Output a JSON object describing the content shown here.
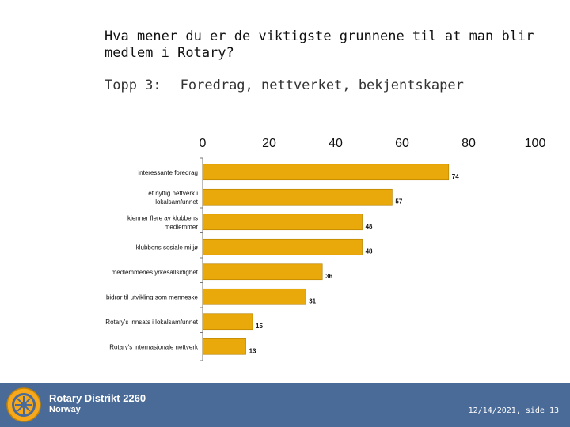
{
  "slide": {
    "title": "Hva mener du er de viktigste grunnene til at man blir medlem i Rotary?",
    "subtitle_label": "Topp 3:",
    "subtitle_text": "Foredrag, nettverket, bekjentskaper"
  },
  "chart_data": {
    "type": "bar",
    "orientation": "horizontal",
    "categories": [
      [
        "interessante foredrag"
      ],
      [
        "et nyttig nettverk i",
        "lokalsamfunnet"
      ],
      [
        "kjenner flere av klubbens",
        "medlemmer"
      ],
      [
        "klubbens sosiale miljø"
      ],
      [
        "medlemmenes yrkesallsidighet"
      ],
      [
        "bidrar til utvikling som menneske"
      ],
      [
        "Rotary's innsats i lokalsamfunnet"
      ],
      [
        "Rotary's internasjonale nettverk"
      ]
    ],
    "values": [
      74,
      57,
      48,
      48,
      36,
      31,
      15,
      13
    ],
    "xlim": [
      0,
      100
    ],
    "x_ticks": [
      0,
      20,
      40,
      60,
      80,
      100
    ],
    "bar_color": "#e9a90b",
    "grid": false,
    "legend": "none"
  },
  "footer": {
    "org_name": "Rotary Distrikt 2260",
    "country": "Norway",
    "page_info": "12/14/2021, side 13",
    "background_color": "#4a6b98",
    "logo_icon": "rotary-wheel-icon"
  }
}
